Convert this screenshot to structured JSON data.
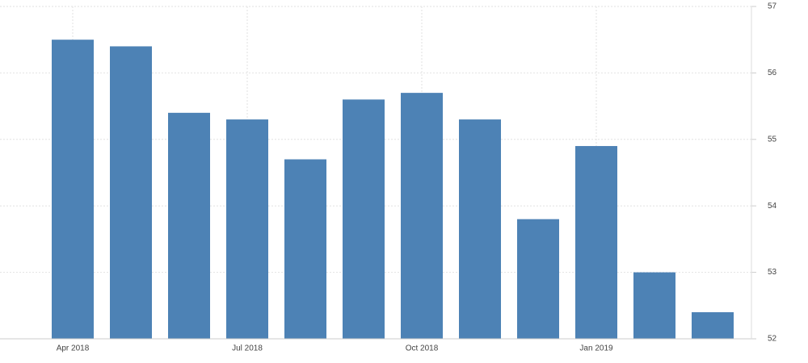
{
  "chart_data": {
    "type": "bar",
    "categories": [
      "Apr 2018",
      null,
      null,
      "Jul 2018",
      null,
      null,
      "Oct 2018",
      null,
      null,
      "Jan 2019",
      null,
      null
    ],
    "values": [
      56.5,
      56.4,
      55.4,
      55.3,
      54.7,
      55.6,
      55.7,
      55.3,
      53.8,
      54.9,
      53.0,
      52.4
    ],
    "color": "#4d82b5",
    "ylim": [
      52,
      57
    ],
    "yticks": [
      52,
      53,
      54,
      55,
      56,
      57
    ],
    "grid": true,
    "y_axis_side": "right"
  }
}
